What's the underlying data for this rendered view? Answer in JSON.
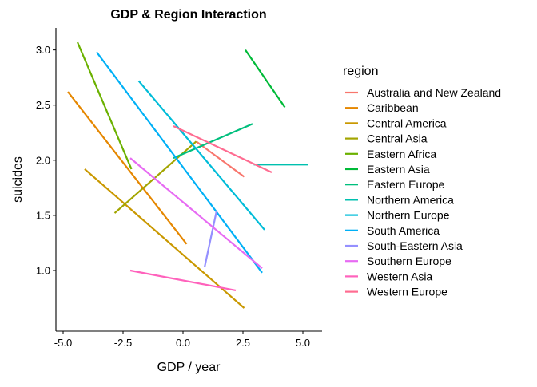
{
  "chart_data": {
    "type": "line",
    "title": "GDP & Region Interaction",
    "xlabel": "GDP / year",
    "ylabel": "suicides",
    "xlim": [
      -5.3,
      5.8
    ],
    "ylim": [
      0.45,
      3.2
    ],
    "xticks": [
      -5.0,
      -2.5,
      0.0,
      2.5,
      5.0
    ],
    "xtick_labels": [
      "-5.0",
      "-2.5",
      "0.0",
      "2.5",
      "5.0"
    ],
    "yticks": [
      1.0,
      1.5,
      2.0,
      2.5,
      3.0
    ],
    "ytick_labels": [
      "1.0",
      "1.5",
      "2.0",
      "2.5",
      "3.0"
    ],
    "grid": false,
    "legend_title": "region",
    "legend_position": "right",
    "series": [
      {
        "name": "Australia and New Zealand",
        "color": "#F8766D",
        "points": [
          [
            0.55,
            2.17
          ],
          [
            2.55,
            1.85
          ]
        ]
      },
      {
        "name": "Caribbean",
        "color": "#E58700",
        "points": [
          [
            -4.8,
            2.62
          ],
          [
            0.15,
            1.24
          ]
        ]
      },
      {
        "name": "Central America",
        "color": "#C99800",
        "points": [
          [
            -4.1,
            1.92
          ],
          [
            2.55,
            0.66
          ]
        ]
      },
      {
        "name": "Central Asia",
        "color": "#A3A500",
        "points": [
          [
            -2.85,
            1.52
          ],
          [
            0.55,
            2.17
          ]
        ]
      },
      {
        "name": "Eastern Africa",
        "color": "#6BB100",
        "points": [
          [
            -4.4,
            3.07
          ],
          [
            -2.15,
            1.92
          ]
        ]
      },
      {
        "name": "Eastern Asia",
        "color": "#00BA38",
        "points": [
          [
            2.6,
            3.0
          ],
          [
            4.25,
            2.48
          ]
        ]
      },
      {
        "name": "Eastern Europe",
        "color": "#00BF7D",
        "points": [
          [
            -0.4,
            2.02
          ],
          [
            2.9,
            2.33
          ]
        ]
      },
      {
        "name": "Northern America",
        "color": "#00C0AF",
        "points": [
          [
            2.95,
            1.96
          ],
          [
            5.2,
            1.96
          ]
        ]
      },
      {
        "name": "Northern Europe",
        "color": "#00BCD8",
        "points": [
          [
            -1.85,
            2.72
          ],
          [
            3.4,
            1.37
          ]
        ]
      },
      {
        "name": "South America",
        "color": "#00B0F6",
        "points": [
          [
            -3.6,
            2.98
          ],
          [
            3.3,
            0.98
          ]
        ]
      },
      {
        "name": "South-Eastern Asia",
        "color": "#9590FF",
        "points": [
          [
            0.9,
            1.03
          ],
          [
            1.4,
            1.54
          ]
        ]
      },
      {
        "name": "Southern Europe",
        "color": "#E76BF3",
        "points": [
          [
            -2.2,
            2.02
          ],
          [
            3.3,
            1.02
          ]
        ]
      },
      {
        "name": "Western Asia",
        "color": "#FF62BC",
        "points": [
          [
            -2.2,
            1.0
          ],
          [
            2.2,
            0.82
          ]
        ]
      },
      {
        "name": "Western Europe",
        "color": "#FF6C91",
        "points": [
          [
            -0.4,
            2.31
          ],
          [
            3.7,
            1.89
          ]
        ]
      }
    ]
  }
}
